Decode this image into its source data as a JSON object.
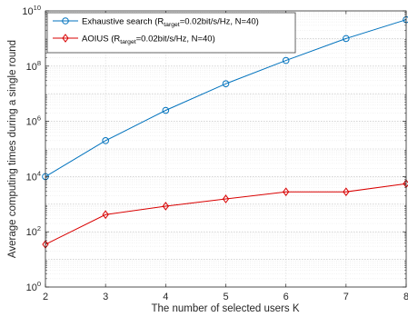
{
  "chart_data": {
    "type": "line",
    "title": "",
    "xlabel": "The number of selected users K",
    "ylabel": "Average computing times during a single round",
    "xlim": [
      2,
      8
    ],
    "ylim_exponent": [
      0,
      10
    ],
    "y_scale": "log",
    "y_tick_base": "10",
    "x_ticks": [
      "2",
      "3",
      "4",
      "5",
      "6",
      "7",
      "8"
    ],
    "y_tick_exponents": [
      "0",
      "2",
      "4",
      "6",
      "8",
      "10"
    ],
    "grid": true,
    "legend_position": "top-left",
    "x": [
      2,
      3,
      4,
      5,
      6,
      7,
      8
    ],
    "series": [
      {
        "legend_main": "Exhaustive search (R",
        "legend_sub": "target",
        "legend_tail": "=0.02bit/s/Hz, N=40)",
        "color": "#0072BD",
        "marker": "circle",
        "values": [
          10000,
          200000,
          2500000,
          23000000,
          160000000,
          1000000000,
          4800000000
        ]
      },
      {
        "legend_main": "AOIUS  (R",
        "legend_sub": "target",
        "legend_tail": "=0.02bit/s/Hz, N=40)",
        "color": "#D90000",
        "marker": "diamond",
        "values": [
          35,
          420,
          850,
          1550,
          2800,
          2800,
          5500
        ]
      }
    ]
  }
}
